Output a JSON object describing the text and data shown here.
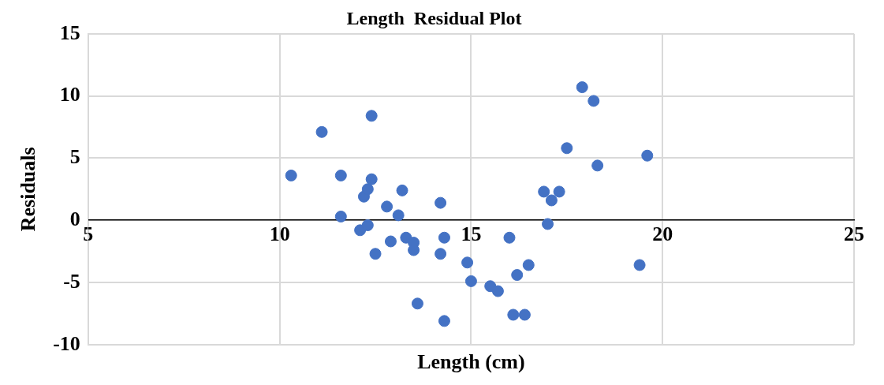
{
  "chart_data": {
    "type": "scatter",
    "title": "Length  Residual Plot",
    "xlabel": "Length (cm)",
    "ylabel": "Residuals",
    "xlim": [
      5,
      25
    ],
    "xticks": [
      5,
      10,
      15,
      20,
      25
    ],
    "ylim": [
      -10,
      15
    ],
    "yticks": [
      -10,
      -5,
      0,
      5,
      10,
      15
    ],
    "grid": true,
    "legend": false,
    "marker": "circle",
    "series": [
      {
        "color": "#4472c4",
        "x": [
          10.3,
          11.1,
          11.6,
          11.6,
          12.1,
          12.2,
          12.3,
          12.4,
          12.4,
          12.3,
          12.5,
          12.8,
          12.9,
          13.1,
          13.2,
          13.3,
          13.5,
          13.5,
          13.6,
          14.2,
          14.2,
          14.3,
          14.3,
          14.9,
          15.0,
          15.5,
          15.7,
          16.0,
          16.1,
          16.2,
          16.4,
          16.5,
          16.9,
          17.0,
          17.1,
          17.3,
          17.5,
          17.9,
          18.2,
          18.3,
          19.4,
          19.6
        ],
        "values": [
          3.6,
          7.1,
          3.6,
          0.3,
          -0.8,
          1.9,
          2.5,
          8.4,
          3.3,
          -0.4,
          -2.7,
          1.1,
          -1.7,
          0.4,
          2.4,
          -1.4,
          -1.8,
          -2.4,
          -6.7,
          1.4,
          -2.7,
          -1.4,
          -8.1,
          -3.4,
          -4.9,
          -5.3,
          -5.7,
          -1.4,
          -7.6,
          -4.4,
          -7.6,
          -3.6,
          2.3,
          -0.3,
          1.6,
          2.3,
          5.8,
          10.7,
          9.6,
          4.4,
          -3.6,
          5.2
        ]
      }
    ]
  }
}
